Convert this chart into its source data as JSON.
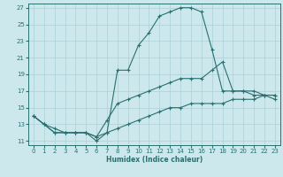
{
  "xlabel": "Humidex (Indice chaleur)",
  "xlim": [
    -0.5,
    23.5
  ],
  "ylim": [
    10.5,
    27.5
  ],
  "yticks": [
    11,
    13,
    15,
    17,
    19,
    21,
    23,
    25,
    27
  ],
  "xticks": [
    0,
    1,
    2,
    3,
    4,
    5,
    6,
    7,
    8,
    9,
    10,
    11,
    12,
    13,
    14,
    15,
    16,
    17,
    18,
    19,
    20,
    21,
    22,
    23
  ],
  "bg_color": "#cce8ec",
  "line_color": "#2a7070",
  "grid_color": "#aacfd6",
  "s1_x": [
    0,
    1,
    2,
    3,
    4,
    5,
    6,
    7,
    8,
    9,
    10,
    11,
    12,
    13,
    14,
    15,
    16,
    17,
    18,
    19,
    20,
    21,
    22,
    23
  ],
  "s1_y": [
    14.0,
    13.0,
    12.0,
    12.0,
    12.0,
    12.0,
    11.0,
    12.0,
    19.5,
    19.5,
    22.5,
    24.0,
    26.0,
    26.5,
    27.0,
    27.0,
    26.5,
    22.0,
    17.0,
    17.0,
    17.0,
    16.5,
    16.5,
    16.5
  ],
  "s2_x": [
    0,
    1,
    2,
    3,
    4,
    5,
    6,
    7,
    8,
    9,
    10,
    11,
    12,
    13,
    14,
    15,
    16,
    17,
    18,
    19,
    20,
    21,
    22,
    23
  ],
  "s2_y": [
    14.0,
    13.0,
    12.5,
    12.0,
    12.0,
    12.0,
    11.5,
    13.5,
    15.5,
    16.0,
    16.5,
    17.0,
    17.5,
    18.0,
    18.5,
    18.5,
    18.5,
    19.5,
    20.5,
    17.0,
    17.0,
    17.0,
    16.5,
    16.0
  ],
  "s3_x": [
    0,
    1,
    2,
    3,
    4,
    5,
    6,
    7,
    8,
    9,
    10,
    11,
    12,
    13,
    14,
    15,
    16,
    17,
    18,
    19,
    20,
    21,
    22,
    23
  ],
  "s3_y": [
    14.0,
    13.0,
    12.0,
    12.0,
    12.0,
    12.0,
    11.5,
    12.0,
    12.5,
    13.0,
    13.5,
    14.0,
    14.5,
    15.0,
    15.0,
    15.5,
    15.5,
    15.5,
    15.5,
    16.0,
    16.0,
    16.0,
    16.5,
    16.5
  ]
}
